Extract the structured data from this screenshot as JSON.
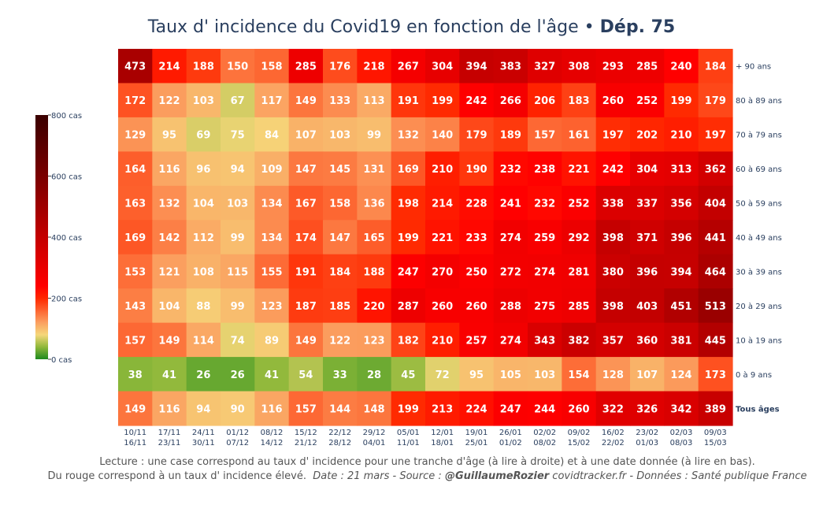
{
  "title": {
    "main": "Taux d' incidence du Covid19 en fonction de l'âge",
    "separator": " • ",
    "department": "Dép. 75"
  },
  "footer": {
    "line1": "Lecture : une case correspond au taux d' incidence pour une tranche d'âge (à lire à droite) et à une date donnée (à lire en bas).",
    "line2_plain": "Du rouge correspond à un taux d' incidence élevé.",
    "line2_date": "Date : 21 mars - Source : ",
    "line2_author": "@GuillaumeRozier",
    "line2_rest": " covidtracker.fr - Données : Santé publique France"
  },
  "chart_data": {
    "type": "heatmap",
    "title": "Taux d' incidence du Covid19 en fonction de l'âge • Dép. 75",
    "x": [
      [
        "10/11",
        "16/11"
      ],
      [
        "17/11",
        "23/11"
      ],
      [
        "24/11",
        "30/11"
      ],
      [
        "01/12",
        "07/12"
      ],
      [
        "08/12",
        "14/12"
      ],
      [
        "15/12",
        "21/12"
      ],
      [
        "22/12",
        "28/12"
      ],
      [
        "29/12",
        "04/01"
      ],
      [
        "05/01",
        "11/01"
      ],
      [
        "12/01",
        "18/01"
      ],
      [
        "19/01",
        "25/01"
      ],
      [
        "26/01",
        "01/02"
      ],
      [
        "02/02",
        "08/02"
      ],
      [
        "09/02",
        "15/02"
      ],
      [
        "16/02",
        "22/02"
      ],
      [
        "23/02",
        "01/03"
      ],
      [
        "02/03",
        "08/03"
      ],
      [
        "09/03",
        "15/03"
      ]
    ],
    "y": [
      "+ 90 ans",
      "80 à 89 ans",
      "70 à 79 ans",
      "60 à 69 ans",
      "50 à 59 ans",
      "40 à 49 ans",
      "30 à 39 ans",
      "20 à 29 ans",
      "10 à 19 ans",
      "0 à 9 ans",
      "Tous âges"
    ],
    "z": [
      [
        473,
        214,
        188,
        150,
        158,
        285,
        176,
        218,
        267,
        304,
        394,
        383,
        327,
        308,
        293,
        285,
        240,
        184
      ],
      [
        172,
        122,
        103,
        67,
        117,
        149,
        133,
        113,
        191,
        199,
        242,
        266,
        206,
        183,
        260,
        252,
        199,
        179
      ],
      [
        129,
        95,
        69,
        75,
        84,
        107,
        103,
        99,
        132,
        140,
        179,
        189,
        157,
        161,
        197,
        202,
        210,
        197
      ],
      [
        164,
        116,
        96,
        94,
        109,
        147,
        145,
        131,
        169,
        210,
        190,
        232,
        238,
        221,
        242,
        304,
        313,
        362
      ],
      [
        163,
        132,
        104,
        103,
        134,
        167,
        158,
        136,
        198,
        214,
        228,
        241,
        232,
        252,
        338,
        337,
        356,
        404
      ],
      [
        169,
        142,
        112,
        99,
        134,
        174,
        147,
        165,
        199,
        221,
        233,
        274,
        259,
        292,
        398,
        371,
        396,
        441
      ],
      [
        153,
        121,
        108,
        115,
        155,
        191,
        184,
        188,
        247,
        270,
        250,
        272,
        274,
        281,
        380,
        396,
        394,
        464
      ],
      [
        143,
        104,
        88,
        99,
        123,
        187,
        185,
        220,
        287,
        260,
        260,
        288,
        275,
        285,
        398,
        403,
        451,
        513
      ],
      [
        157,
        149,
        114,
        74,
        89,
        149,
        122,
        123,
        182,
        210,
        257,
        274,
        343,
        382,
        357,
        360,
        381,
        445
      ],
      [
        38,
        41,
        26,
        26,
        41,
        54,
        33,
        28,
        45,
        72,
        95,
        105,
        103,
        154,
        128,
        107,
        124,
        173
      ],
      [
        149,
        116,
        94,
        90,
        116,
        157,
        144,
        148,
        199,
        213,
        224,
        247,
        244,
        260,
        322,
        326,
        342,
        389
      ]
    ],
    "zmin": 0,
    "zmax": 800,
    "colorscale": [
      [
        0.0,
        "#1e8a1e"
      ],
      [
        0.05,
        "#8fb83a"
      ],
      [
        0.1,
        "#f5d77a"
      ],
      [
        0.15,
        "#fba060"
      ],
      [
        0.25,
        "#ff2800"
      ],
      [
        0.3,
        "#ff0000"
      ],
      [
        0.5,
        "#c40000"
      ],
      [
        0.75,
        "#7a0000"
      ],
      [
        1.0,
        "#3a0000"
      ]
    ],
    "colorbar": {
      "ticks": [
        0,
        200,
        400,
        600,
        800
      ],
      "tick_labels": [
        "0 cas",
        "200 cas",
        "400 cas",
        "600 cas",
        "800 cas"
      ]
    },
    "bold_row": "Tous âges"
  }
}
